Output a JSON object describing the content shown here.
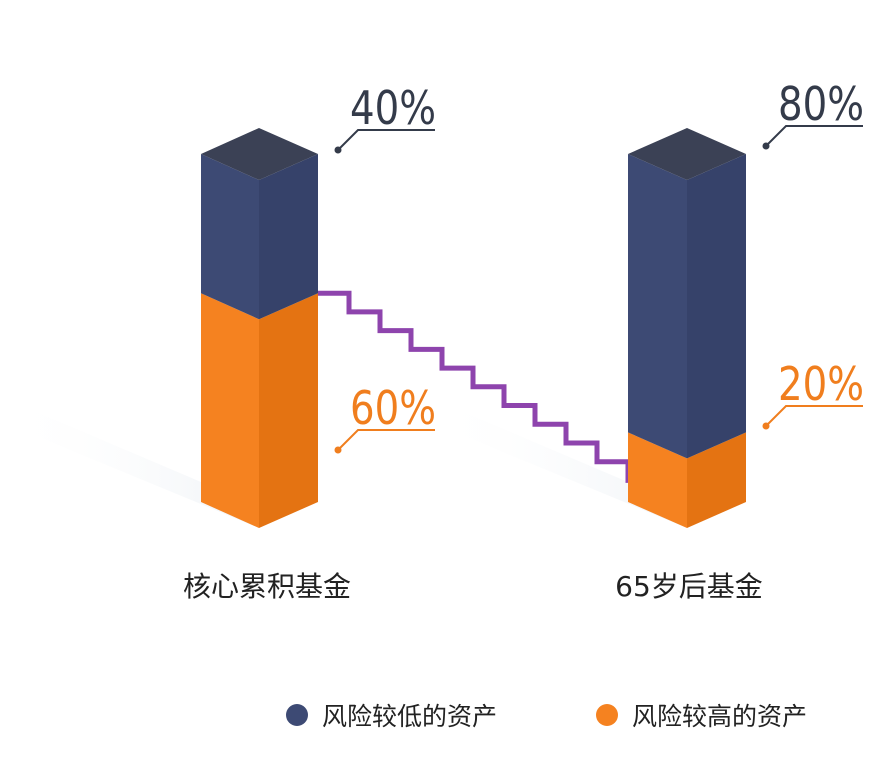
{
  "colors": {
    "low_risk": "#3D4A74",
    "low_risk_side": "#36426A",
    "low_risk_top": "#3B4155",
    "high_risk": "#F58220",
    "high_risk_side": "#E47312",
    "line": "#8E44AD",
    "label_dark": "#343B4A",
    "label_orange": "#F07E1E",
    "text": "#222222"
  },
  "chart_data": {
    "type": "bar",
    "stacked": true,
    "categories": [
      "核心累积基金",
      "65岁后基金"
    ],
    "series": [
      {
        "name": "风险较低的资产",
        "values": [
          40,
          80
        ],
        "color": "#3D4A74"
      },
      {
        "name": "风险较高的资产",
        "values": [
          60,
          20
        ],
        "color": "#F58220"
      }
    ],
    "data_labels": {
      "low_risk": [
        "40%",
        "80%"
      ],
      "high_risk": [
        "60%",
        "20%"
      ]
    },
    "ylim": [
      0,
      100
    ],
    "legend": "bottom-right"
  },
  "legend": {
    "items": [
      {
        "label": "风险较低的资产",
        "color": "#3D4A74"
      },
      {
        "label": "风险较高的资产",
        "color": "#F58220"
      }
    ]
  }
}
